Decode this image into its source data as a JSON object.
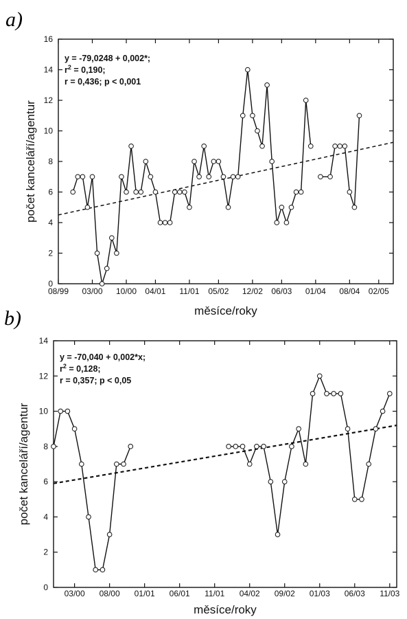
{
  "chart_data": [
    {
      "type": "line",
      "panel_label": "a)",
      "xlabel": "měsíce/roky",
      "ylabel": "počet kanceláří/agentur",
      "ylim": [
        0,
        16
      ],
      "yticks": [
        0,
        2,
        4,
        6,
        8,
        10,
        12,
        14,
        16
      ],
      "xlim": [
        0,
        69
      ],
      "xticks": [
        {
          "label": "08/99",
          "at": 0
        },
        {
          "label": "03/00",
          "at": 7
        },
        {
          "label": "10/00",
          "at": 14
        },
        {
          "label": "04/01",
          "at": 20
        },
        {
          "label": "11/01",
          "at": 27
        },
        {
          "label": "05/02",
          "at": 33
        },
        {
          "label": "12/02",
          "at": 40
        },
        {
          "label": "06/03",
          "at": 46
        },
        {
          "label": "01/04",
          "at": 53
        },
        {
          "label": "08/04",
          "at": 60
        },
        {
          "label": "02/05",
          "at": 66
        }
      ],
      "annotation": [
        "y = -79,0248 + 0,002*;",
        "r2 = 0,190;",
        "r = 0,436; p < 0,001"
      ],
      "series": [
        {
          "x": [
            3,
            4,
            5,
            6,
            7,
            8,
            9,
            10,
            11,
            12,
            13,
            14,
            15,
            16,
            17,
            18,
            19,
            20,
            21,
            22,
            23,
            24,
            25,
            26,
            27,
            28,
            29,
            30,
            31,
            32,
            33,
            34,
            35,
            36,
            37,
            38,
            39,
            40,
            41,
            42,
            43,
            44,
            45,
            46,
            47,
            48,
            49,
            50,
            51,
            52,
            53,
            54,
            56,
            57,
            58,
            59,
            60,
            61,
            62,
            63
          ],
          "y": [
            6,
            7,
            7,
            5,
            7,
            2,
            0,
            1,
            3,
            2,
            7,
            6,
            9,
            6,
            6,
            8,
            7,
            6,
            4,
            4,
            4,
            6,
            6,
            6,
            5,
            8,
            7,
            9,
            7,
            8,
            8,
            7,
            5,
            7,
            7,
            11,
            14,
            11,
            10,
            9,
            13,
            8,
            4,
            5,
            4,
            5,
            6,
            6,
            12,
            9,
            null,
            7,
            7,
            9,
            9,
            9,
            6,
            5,
            11,
            null
          ]
        }
      ],
      "trend": {
        "x": [
          0,
          69
        ],
        "y": [
          4.5,
          9.25
        ]
      }
    },
    {
      "type": "line",
      "panel_label": "b)",
      "xlabel": "měsíce/roky",
      "ylabel": "počet kanceláří/agentur",
      "ylim": [
        0,
        14
      ],
      "yticks": [
        0,
        2,
        4,
        6,
        8,
        10,
        12,
        14
      ],
      "xlim": [
        0,
        49
      ],
      "xticks": [
        {
          "label": "03/00",
          "at": 3
        },
        {
          "label": "08/00",
          "at": 8
        },
        {
          "label": "01/01",
          "at": 13
        },
        {
          "label": "06/01",
          "at": 18
        },
        {
          "label": "11/01",
          "at": 23
        },
        {
          "label": "04/02",
          "at": 28
        },
        {
          "label": "09/02",
          "at": 33
        },
        {
          "label": "01/03",
          "at": 38
        },
        {
          "label": "06/03",
          "at": 43
        },
        {
          "label": "11/03",
          "at": 48
        }
      ],
      "annotation": [
        "y = -70,040 + 0,002*x;",
        "r2 = 0,128;",
        "r = 0,357; p < 0,05"
      ],
      "series": [
        {
          "x": [
            0,
            1,
            2,
            3,
            4,
            5,
            6,
            7,
            8,
            9,
            10,
            11,
            null,
            25,
            26,
            27,
            28,
            29,
            30,
            31,
            32,
            33,
            34,
            35,
            36,
            37,
            38,
            39,
            40,
            41,
            42,
            43,
            44,
            45,
            46,
            47,
            48
          ],
          "y": [
            8,
            10,
            10,
            9,
            7,
            4,
            1,
            1,
            3,
            7,
            7,
            8,
            null,
            8,
            8,
            8,
            7,
            8,
            8,
            6,
            3,
            6,
            8,
            9,
            7,
            11,
            12,
            11,
            11,
            11,
            9,
            5,
            5,
            7,
            9,
            10,
            11
          ]
        }
      ],
      "trend": {
        "x": [
          0,
          49
        ],
        "y": [
          5.9,
          9.2
        ]
      }
    }
  ]
}
